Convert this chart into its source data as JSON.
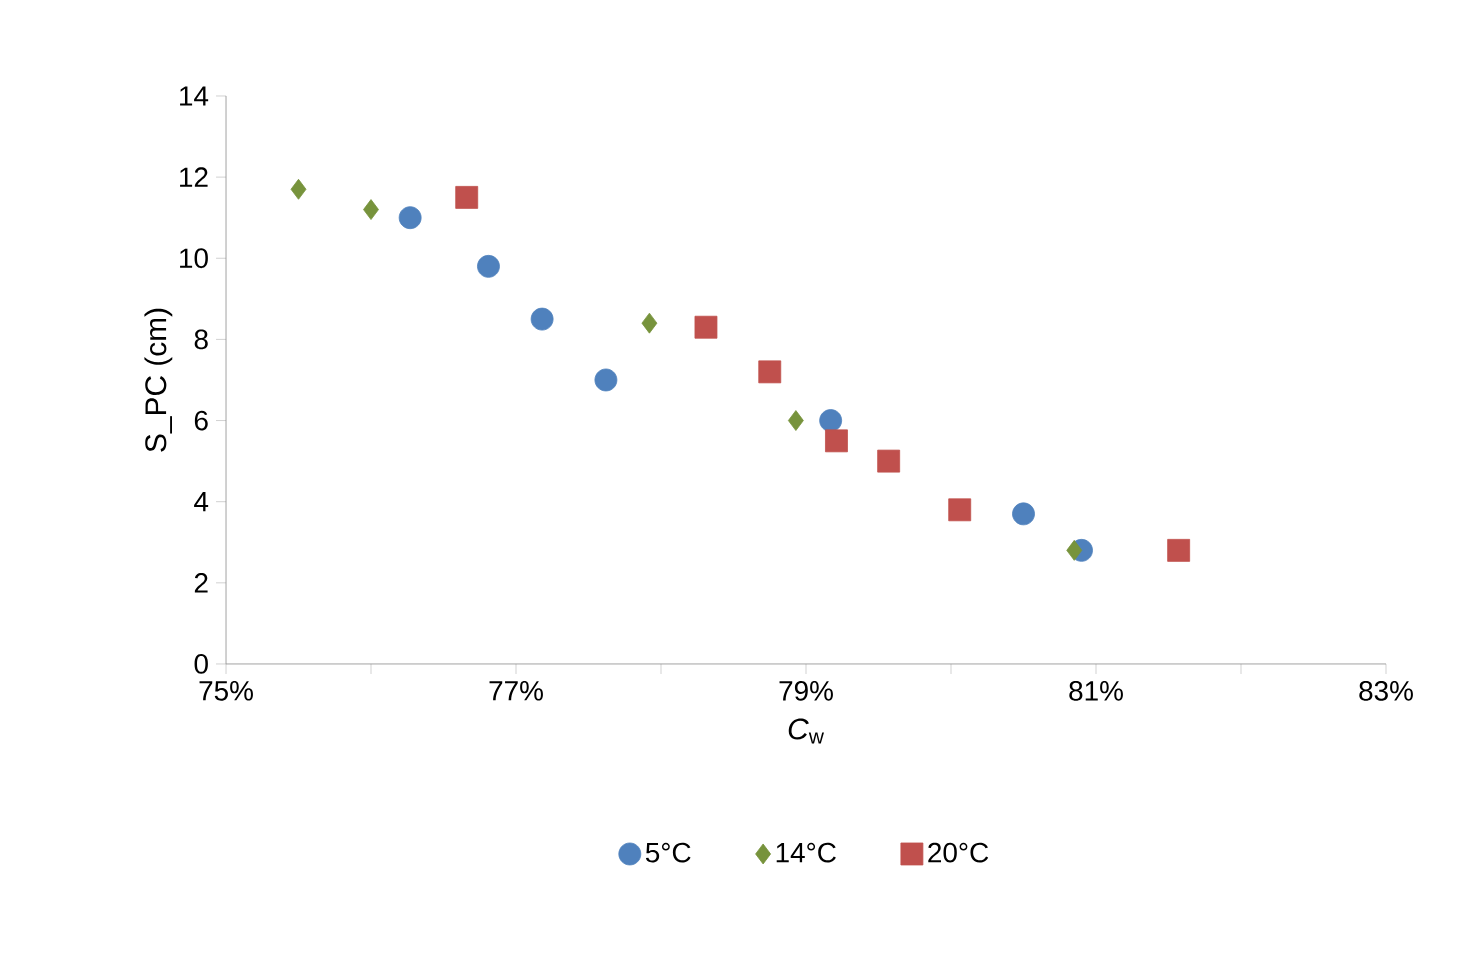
{
  "chart_data": {
    "type": "scatter",
    "xlabel": "*C*$_{w}$",
    "ylabel": "S_PC (cm)",
    "xlim": [
      75,
      83
    ],
    "ylim": [
      0,
      14
    ],
    "xticks": [
      {
        "value": 75,
        "label": "75%"
      },
      {
        "value": 76,
        "label": null
      },
      {
        "value": 77,
        "label": "77%"
      },
      {
        "value": 78,
        "label": null
      },
      {
        "value": 79,
        "label": "79%"
      },
      {
        "value": 80,
        "label": null
      },
      {
        "value": 81,
        "label": "81%"
      },
      {
        "value": 82,
        "label": null
      },
      {
        "value": 83,
        "label": "83%"
      }
    ],
    "yticks": [
      0,
      2,
      4,
      6,
      8,
      10,
      12,
      14
    ],
    "grid": false,
    "legend": "bottom",
    "series": [
      {
        "name": "5°C",
        "color": "#4f81bd",
        "marker": "circle",
        "x": [
          76.27,
          76.81,
          77.18,
          77.62,
          79.17,
          80.5,
          80.9
        ],
        "values": [
          11.0,
          9.8,
          8.5,
          7.0,
          6.0,
          3.7,
          2.8
        ]
      },
      {
        "name": "14°C",
        "color": "#77933c",
        "marker": "diamond",
        "x": [
          75.5,
          76.0,
          77.92,
          78.93,
          80.85
        ],
        "values": [
          11.7,
          11.2,
          8.4,
          6.0,
          2.8
        ]
      },
      {
        "name": "20°C",
        "color": "#c0504d",
        "marker": "square",
        "x": [
          76.66,
          78.31,
          78.75,
          79.21,
          79.57,
          80.06,
          81.57
        ],
        "values": [
          11.5,
          8.3,
          7.2,
          5.5,
          5.0,
          3.8,
          2.8
        ]
      }
    ]
  }
}
